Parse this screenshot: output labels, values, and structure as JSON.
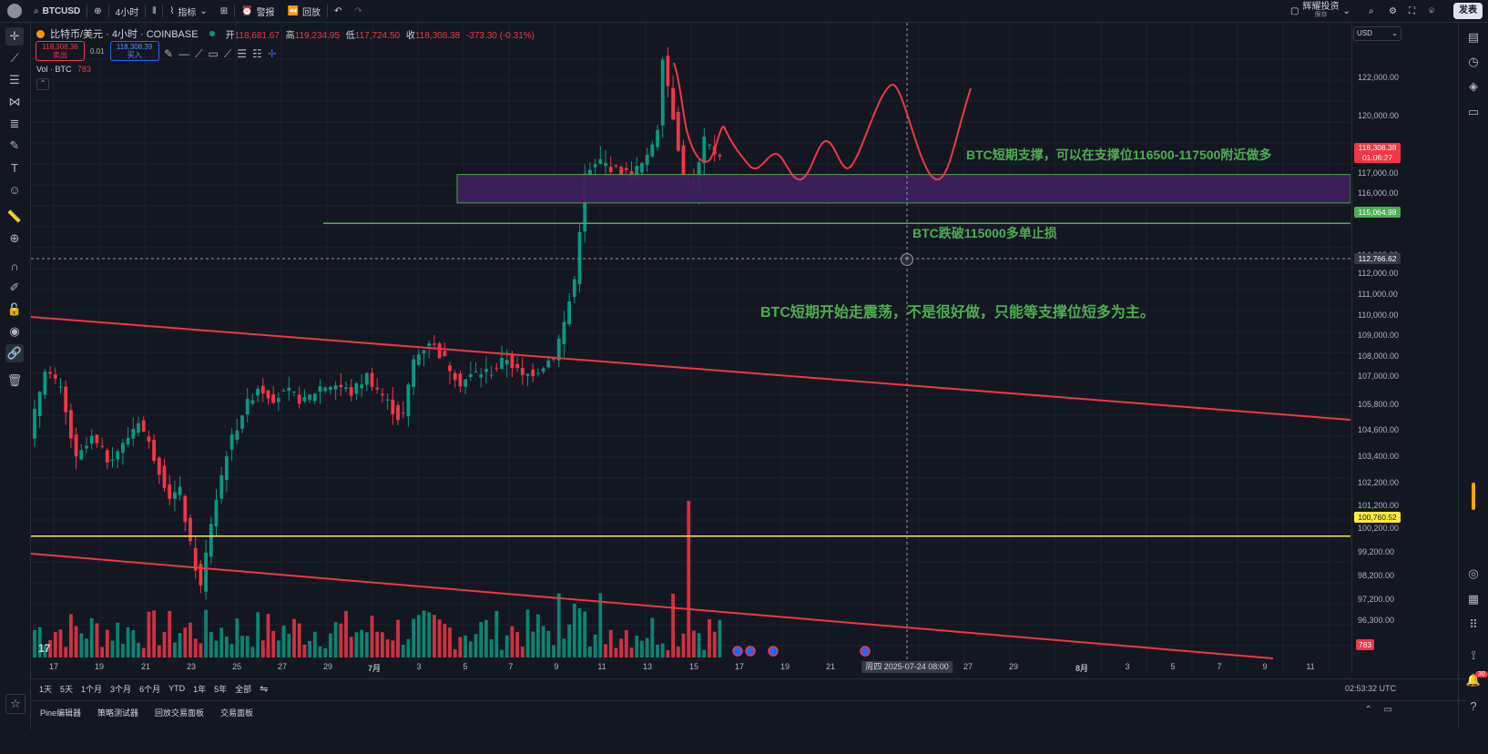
{
  "topbar": {
    "symbol": "BTCUSD",
    "interval": "4小时",
    "indicators": "指标",
    "alert": "警报",
    "replay": "回放",
    "user_name": "辉耀投资",
    "user_sub": "保存",
    "publish": "发表"
  },
  "legend": {
    "title": "比特币/美元 · 4小时 · COINBASE",
    "open_label": "开",
    "open": "118,681.67",
    "high_label": "高",
    "high": "119,234.95",
    "low_label": "低",
    "low": "117,724.50",
    "close_label": "收",
    "close": "118,308.38",
    "change": "-373.30 (-0.31%)",
    "sell_price": "118,308.38",
    "sell_label": "卖出",
    "spread": "0.01",
    "buy_price": "118,308.39",
    "buy_label": "买入",
    "volume_label": "Vol · BTC",
    "volume_value": "783"
  },
  "price_axis": {
    "currency": "USD",
    "ticks": [
      "122,000.00",
      "120,000.00",
      "117,000.00",
      "116,000.00",
      "114,000.00",
      "112,000.00",
      "111,000.00",
      "110,000.00",
      "109,000.00",
      "108,000.00",
      "107,000.00",
      "105,800.00",
      "104,600.00",
      "103,400.00",
      "102,200.00",
      "101,200.00",
      "100,200.00",
      "99,200.00",
      "98,200.00",
      "97,200.00",
      "96,300.00"
    ],
    "last_price": "118,308.38",
    "countdown": "01:06:27",
    "green_tag": "115,064.98",
    "cursor_tag": "112,766.62",
    "yellow_tag": "100,760.52",
    "volume_tag": "783"
  },
  "time_axis": {
    "labels": [
      "17",
      "19",
      "21",
      "23",
      "25",
      "27",
      "29",
      "7月",
      "3",
      "5",
      "7",
      "9",
      "11",
      "13",
      "15",
      "17",
      "19",
      "21",
      "27",
      "29",
      "8月",
      "3",
      "5",
      "7",
      "9",
      "11"
    ],
    "cursor": "周四 2025-07-24   08:00"
  },
  "annotations": {
    "support": "BTC短期支撑，可以在支撑位116500-117500附近做多",
    "stop": "BTC跌破115000多单止损",
    "outlook": "BTC短期开始走震荡，不是很好做，只能等支撑位短多为主。"
  },
  "range_bar": {
    "ranges": [
      "1天",
      "5天",
      "1个月",
      "3个月",
      "6个月",
      "YTD",
      "1年",
      "5年",
      "全部"
    ],
    "utc": "02:53:32 UTC"
  },
  "bottom_tabs": [
    "Pine编辑器",
    "策略测试器",
    "回放交易面板",
    "交易面板"
  ],
  "notification_count": "30",
  "colors": {
    "background": "#131722",
    "up": "#089981",
    "down": "#f23645",
    "support_line": "#4caf50",
    "zone_fill": "#3f1f5c",
    "trend_line": "#f23645",
    "level_line": "#ffeb3b"
  },
  "chart_data": {
    "type": "candlestick",
    "symbol": "BTCUSD",
    "interval": "4h",
    "ylim": [
      95500,
      123200
    ],
    "price_path": [
      [
        0,
        105300
      ],
      [
        3,
        108500
      ],
      [
        6,
        107400
      ],
      [
        9,
        104200
      ],
      [
        12,
        105200
      ],
      [
        15,
        104300
      ],
      [
        18,
        104900
      ],
      [
        21,
        106100
      ],
      [
        24,
        104400
      ],
      [
        27,
        102600
      ],
      [
        29,
        102800
      ],
      [
        31,
        100300
      ],
      [
        33,
        98400
      ],
      [
        35,
        101400
      ],
      [
        38,
        104600
      ],
      [
        41,
        106400
      ],
      [
        44,
        107600
      ],
      [
        47,
        107100
      ],
      [
        50,
        107300
      ],
      [
        53,
        106900
      ],
      [
        56,
        107600
      ],
      [
        59,
        107700
      ],
      [
        62,
        107300
      ],
      [
        65,
        108100
      ],
      [
        68,
        107200
      ],
      [
        71,
        106200
      ],
      [
        72,
        106300
      ],
      [
        74,
        108800
      ],
      [
        77,
        109700
      ],
      [
        80,
        108800
      ],
      [
        83,
        107800
      ],
      [
        86,
        108200
      ],
      [
        89,
        108300
      ],
      [
        92,
        108900
      ],
      [
        95,
        108000
      ],
      [
        98,
        108400
      ],
      [
        101,
        109000
      ],
      [
        103,
        110500
      ],
      [
        105,
        112500
      ],
      [
        107,
        117200
      ],
      [
        110,
        117900
      ],
      [
        113,
        117500
      ],
      [
        116,
        117300
      ],
      [
        119,
        118000
      ],
      [
        121,
        119500
      ],
      [
        122,
        122800
      ],
      [
        124,
        120000
      ],
      [
        126,
        117200
      ],
      [
        128,
        116700
      ],
      [
        130,
        118800
      ],
      [
        132,
        118300
      ]
    ],
    "volume_bars": 132,
    "levels": {
      "support_zone": [
        116000,
        117300
      ],
      "stop_line": 115064.98,
      "yellow_line": 100760.52
    }
  }
}
